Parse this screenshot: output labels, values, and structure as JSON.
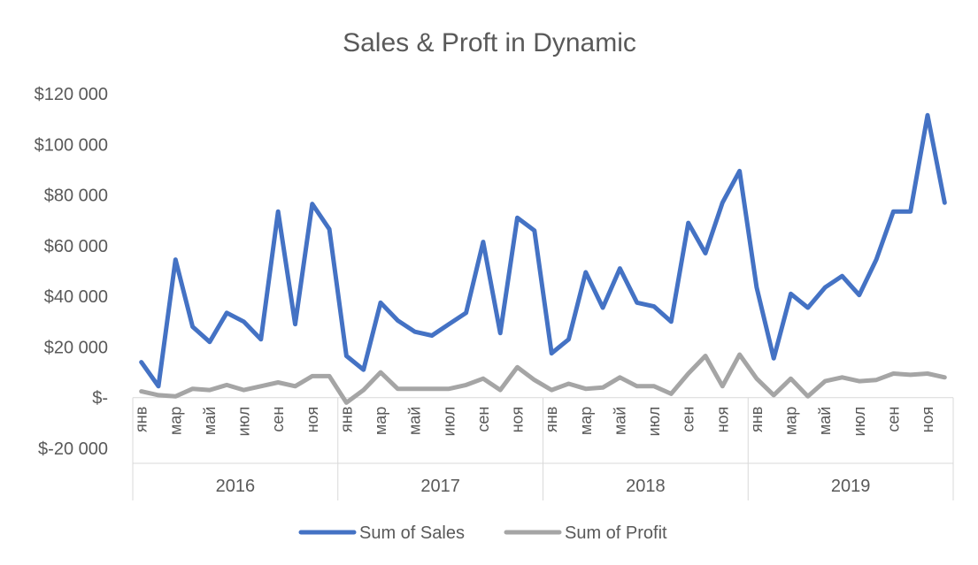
{
  "chart_data": {
    "type": "line",
    "title": "Sales & Proft in Dynamic",
    "xlabel": "",
    "ylabel": "",
    "ylim": [
      -20000,
      120000
    ],
    "y_ticks": [
      {
        "value": 120000,
        "label": "$120 000"
      },
      {
        "value": 100000,
        "label": "$100 000"
      },
      {
        "value": 80000,
        "label": "$80 000"
      },
      {
        "value": 60000,
        "label": "$60 000"
      },
      {
        "value": 40000,
        "label": "$40 000"
      },
      {
        "value": 20000,
        "label": "$20 000"
      },
      {
        "value": 0,
        "label": "$-"
      },
      {
        "value": -20000,
        "label": "$-20 000"
      }
    ],
    "grid": false,
    "legend": "bottom",
    "years": [
      "2016",
      "2017",
      "2018",
      "2019"
    ],
    "month_labels": [
      "янв",
      "",
      "мар",
      "",
      "май",
      "",
      "июл",
      "",
      "сен",
      "",
      "ноя",
      ""
    ],
    "series": [
      {
        "name": "Sum of Sales",
        "color": "#4472C4",
        "values": [
          14000,
          4500,
          54500,
          28000,
          22000,
          33500,
          30000,
          23000,
          73500,
          29000,
          76500,
          66500,
          16500,
          11000,
          37500,
          30500,
          26000,
          24500,
          29000,
          33500,
          61500,
          25500,
          71000,
          66000,
          17500,
          23000,
          49500,
          35500,
          51000,
          37500,
          36000,
          30000,
          69000,
          57000,
          77000,
          89500,
          43500,
          15500,
          41000,
          35500,
          43500,
          48000,
          40500,
          54500,
          73500,
          73500,
          111500,
          77000
        ]
      },
      {
        "name": "Sum of Profit",
        "color": "#A5A5A5",
        "values": [
          2500,
          1000,
          500,
          3500,
          3000,
          5000,
          3000,
          4500,
          6000,
          4500,
          8500,
          8500,
          -2000,
          3000,
          10000,
          3500,
          3500,
          3500,
          3500,
          5000,
          7500,
          3000,
          12000,
          7000,
          3000,
          5500,
          3500,
          4000,
          8000,
          4500,
          4500,
          1500,
          9500,
          16500,
          4500,
          17000,
          7500,
          1000,
          7500,
          500,
          6500,
          8000,
          6500,
          7000,
          9500,
          9000,
          9500,
          8000
        ]
      }
    ]
  }
}
